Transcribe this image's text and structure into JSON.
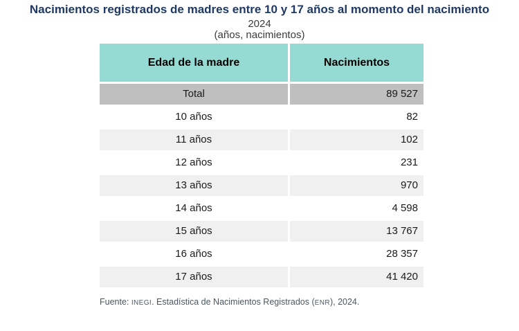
{
  "title": "Nacimientos registrados de madres entre 10 y 17 años al momento del nacimiento",
  "subtitle_year": "2024",
  "subtitle_units": "(años, nacimientos)",
  "table": {
    "columns": {
      "age": "Edad de la madre",
      "births": "Nacimientos"
    },
    "total_row": {
      "label": "Total",
      "value": "89 527"
    },
    "rows": [
      {
        "label": "10 años",
        "value": "82"
      },
      {
        "label": "11 años",
        "value": "102"
      },
      {
        "label": "12 años",
        "value": "231"
      },
      {
        "label": "13 años",
        "value": "970"
      },
      {
        "label": "14 años",
        "value": "4 598"
      },
      {
        "label": "15 años",
        "value": "13 767"
      },
      {
        "label": "16 años",
        "value": "28 357"
      },
      {
        "label": "17 años",
        "value": "41 420"
      }
    ]
  },
  "footer": {
    "prefix": "Fuente: ",
    "org": "INEGI",
    "middle": ". Estadística de Nacimientos Registrados (",
    "abbr": "ENR",
    "suffix": "), 2024."
  },
  "colors": {
    "title_text": "#1f3864",
    "header_bg": "#96dbd3",
    "total_row_bg": "#bfbfbf",
    "alt_row_bg": "#f0f0f0",
    "footer_text": "#4a5763"
  },
  "chart_data": {
    "type": "table",
    "title": "Nacimientos registrados de madres entre 10 y 17 años al momento del nacimiento",
    "subtitle": "2024",
    "units": "años, nacimientos",
    "columns": [
      "Edad de la madre",
      "Nacimientos"
    ],
    "categories": [
      "Total",
      "10 años",
      "11 años",
      "12 años",
      "13 años",
      "14 años",
      "15 años",
      "16 años",
      "17 años"
    ],
    "values": [
      89527,
      82,
      102,
      231,
      970,
      4598,
      13767,
      28357,
      41420
    ],
    "source": "Fuente: INEGI. Estadística de Nacimientos Registrados (ENR), 2024."
  }
}
